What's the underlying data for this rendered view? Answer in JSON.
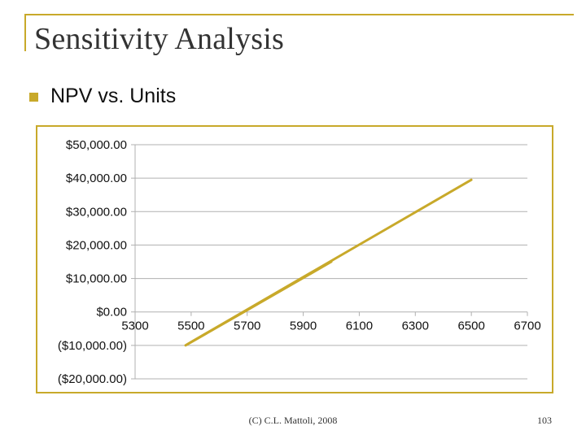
{
  "slide": {
    "title": "Sensitivity Analysis",
    "bullet": "NPV vs. Units",
    "footer_center": "(C) C.L. Mattoli, 2008",
    "page_number": "103",
    "accent_color": "#c8a92a"
  },
  "chart_data": {
    "type": "scatter",
    "title": "",
    "xlabel": "",
    "ylabel": "",
    "x_ticks": [
      "5300",
      "5500",
      "5700",
      "5900",
      "6100",
      "6300",
      "6500",
      "6700"
    ],
    "y_ticks": [
      "$50,000.00",
      "$40,000.00",
      "$30,000.00",
      "$20,000.00",
      "$10,000.00",
      "$0.00",
      "($10,000.00)",
      "($20,000.00)"
    ],
    "xlim": [
      5300,
      6700
    ],
    "ylim": [
      -20000,
      50000
    ],
    "grid": true,
    "series": [
      {
        "name": "NPV",
        "color": "#c8a92a",
        "smooth": true,
        "points": [
          {
            "x": 5500,
            "y": -9000
          },
          {
            "x": 6000,
            "y": 15000
          },
          {
            "x": 5500,
            "y": -9000
          },
          {
            "x": 6500,
            "y": 39500
          }
        ]
      }
    ]
  }
}
